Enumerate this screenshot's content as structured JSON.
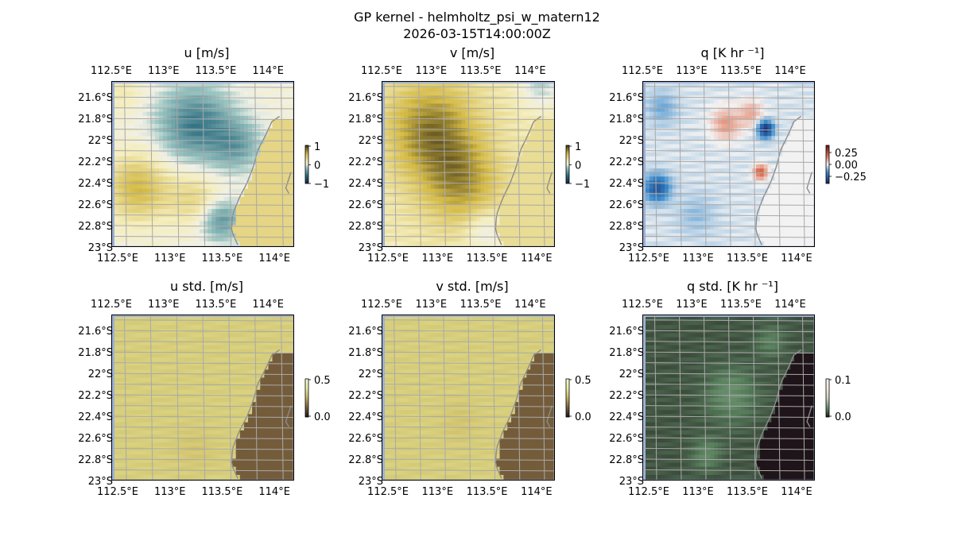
{
  "figure": {
    "title": "GP kernel - helmholtz_psi_w_matern12",
    "timestamp": "2026-03-15T14:00:00Z"
  },
  "colors": {
    "ocean": "#9db1d6",
    "grid": "#a9a9a9",
    "coast": "#8c8c8c",
    "frame": "#000000"
  },
  "chart_data": [
    {
      "type": "heatmap",
      "id": "u",
      "title": "u [m/s]",
      "cmap": "delta",
      "clim": [
        -1,
        1
      ],
      "colorbar_ticks": [
        "1",
        "0",
        "−1"
      ],
      "x_ticks": [
        "112.5°E",
        "113°E",
        "113.5°E",
        "114°E"
      ],
      "y_ticks": [
        "21.6°S",
        "21.8°S",
        "22°S",
        "22.2°S",
        "22.4°S",
        "22.6°S",
        "22.8°S",
        "23°S"
      ],
      "xlim": [
        112.5,
        114.25
      ],
      "ylim": [
        -23.0,
        -21.45
      ],
      "blobs": [
        {
          "lon": 113.3,
          "lat": -21.85,
          "s": 0.35,
          "amp": -0.55
        },
        {
          "lon": 113.7,
          "lat": -22.05,
          "s": 0.25,
          "amp": -0.35
        },
        {
          "lon": 112.75,
          "lat": -22.45,
          "s": 0.3,
          "amp": 0.5
        },
        {
          "lon": 113.3,
          "lat": -22.55,
          "s": 0.25,
          "amp": 0.3
        },
        {
          "lon": 113.55,
          "lat": -22.75,
          "s": 0.2,
          "amp": -0.45
        },
        {
          "lon": 112.6,
          "lat": -21.55,
          "s": 0.2,
          "amp": 0.15
        }
      ],
      "base": 0.05,
      "land_value": 0.35
    },
    {
      "type": "heatmap",
      "id": "v",
      "title": "v [m/s]",
      "cmap": "delta",
      "clim": [
        -1,
        1
      ],
      "colorbar_ticks": [
        "1",
        "0",
        "−1"
      ],
      "x_ticks": [
        "112.5°E",
        "113°E",
        "113.5°E",
        "114°E"
      ],
      "y_ticks": [
        "21.6°S",
        "21.8°S",
        "22°S",
        "22.2°S",
        "22.4°S",
        "22.6°S",
        "22.8°S",
        "23°S"
      ],
      "xlim": [
        112.5,
        114.25
      ],
      "ylim": [
        -23.0,
        -21.45
      ],
      "blobs": [
        {
          "lon": 113.0,
          "lat": -21.9,
          "s": 0.45,
          "amp": 0.55
        },
        {
          "lon": 113.3,
          "lat": -22.4,
          "s": 0.4,
          "amp": 0.45
        },
        {
          "lon": 113.55,
          "lat": -22.85,
          "s": 0.2,
          "amp": -0.25
        },
        {
          "lon": 114.1,
          "lat": -21.5,
          "s": 0.2,
          "amp": -0.3
        }
      ],
      "base": 0.2,
      "land_value": 0.3
    },
    {
      "type": "heatmap",
      "id": "q",
      "title": "q [K hr ⁻¹]",
      "cmap": "balance",
      "clim": [
        -0.35,
        0.35
      ],
      "colorbar_ticks": [
        "0.25",
        "0.00",
        "−0.25"
      ],
      "x_ticks": [
        "112.5°E",
        "113°E",
        "113.5°E",
        "114°E"
      ],
      "y_ticks": [
        "21.6°S",
        "21.8°S",
        "22°S",
        "22.2°S",
        "22.4°S",
        "22.6°S",
        "22.8°S",
        "23°S"
      ],
      "xlim": [
        112.5,
        114.25
      ],
      "ylim": [
        -23.0,
        -21.45
      ],
      "blobs": [
        {
          "lon": 113.35,
          "lat": -21.85,
          "s": 0.15,
          "amp": 0.12
        },
        {
          "lon": 113.6,
          "lat": -21.75,
          "s": 0.12,
          "amp": 0.1
        },
        {
          "lon": 113.75,
          "lat": -21.9,
          "s": 0.08,
          "amp": -0.3
        },
        {
          "lon": 113.7,
          "lat": -22.3,
          "s": 0.07,
          "amp": 0.2
        },
        {
          "lon": 112.65,
          "lat": -22.45,
          "s": 0.13,
          "amp": -0.22
        },
        {
          "lon": 112.7,
          "lat": -21.7,
          "s": 0.15,
          "amp": -0.08
        },
        {
          "lon": 113.05,
          "lat": -22.7,
          "s": 0.2,
          "amp": -0.05
        }
      ],
      "base": -0.02,
      "land_value": 0.0
    },
    {
      "type": "heatmap",
      "id": "u_std",
      "title": "u std. [m/s]",
      "cmap": "std_y",
      "clim": [
        0.0,
        0.5
      ],
      "colorbar_ticks": [
        "0.5",
        "0.0"
      ],
      "x_ticks": [
        "112.5°E",
        "113°E",
        "113.5°E",
        "114°E"
      ],
      "y_ticks": [
        "21.6°S",
        "21.8°S",
        "22°S",
        "22.2°S",
        "22.4°S",
        "22.6°S",
        "22.8°S",
        "23°S"
      ],
      "xlim": [
        112.5,
        114.25
      ],
      "ylim": [
        -23.0,
        -21.45
      ],
      "blobs": [
        {
          "lon": 113.3,
          "lat": -22.7,
          "s": 0.2,
          "amp": -0.02
        }
      ],
      "base": 0.3,
      "land_value": 0.12
    },
    {
      "type": "heatmap",
      "id": "v_std",
      "title": "v std. [m/s]",
      "cmap": "std_y",
      "clim": [
        0.0,
        0.5
      ],
      "colorbar_ticks": [
        "0.5",
        "0.0"
      ],
      "x_ticks": [
        "112.5°E",
        "113°E",
        "113.5°E",
        "114°E"
      ],
      "y_ticks": [
        "21.6°S",
        "21.8°S",
        "22°S",
        "22.2°S",
        "22.4°S",
        "22.6°S",
        "22.8°S",
        "23°S"
      ],
      "xlim": [
        112.5,
        114.25
      ],
      "ylim": [
        -23.0,
        -21.45
      ],
      "blobs": [
        {
          "lon": 113.3,
          "lat": -22.45,
          "s": 0.2,
          "amp": -0.02
        }
      ],
      "base": 0.3,
      "land_value": 0.12
    },
    {
      "type": "heatmap",
      "id": "q_std",
      "title": "q std. [K hr ⁻¹]",
      "cmap": "std_g",
      "clim": [
        0.0,
        0.1
      ],
      "colorbar_ticks": [
        "0.1",
        "0.0"
      ],
      "x_ticks": [
        "112.5°E",
        "113°E",
        "113.5°E",
        "114°E"
      ],
      "y_ticks": [
        "21.6°S",
        "21.8°S",
        "22°S",
        "22.2°S",
        "22.4°S",
        "22.6°S",
        "22.8°S",
        "23°S"
      ],
      "xlim": [
        112.5,
        114.25
      ],
      "ylim": [
        -23.0,
        -21.45
      ],
      "blobs": [
        {
          "lon": 113.4,
          "lat": -22.2,
          "s": 0.25,
          "amp": 0.012
        },
        {
          "lon": 113.15,
          "lat": -22.75,
          "s": 0.15,
          "amp": 0.01
        },
        {
          "lon": 113.8,
          "lat": -21.7,
          "s": 0.15,
          "amp": 0.008
        }
      ],
      "base": 0.012,
      "land_value": -0.004
    }
  ]
}
